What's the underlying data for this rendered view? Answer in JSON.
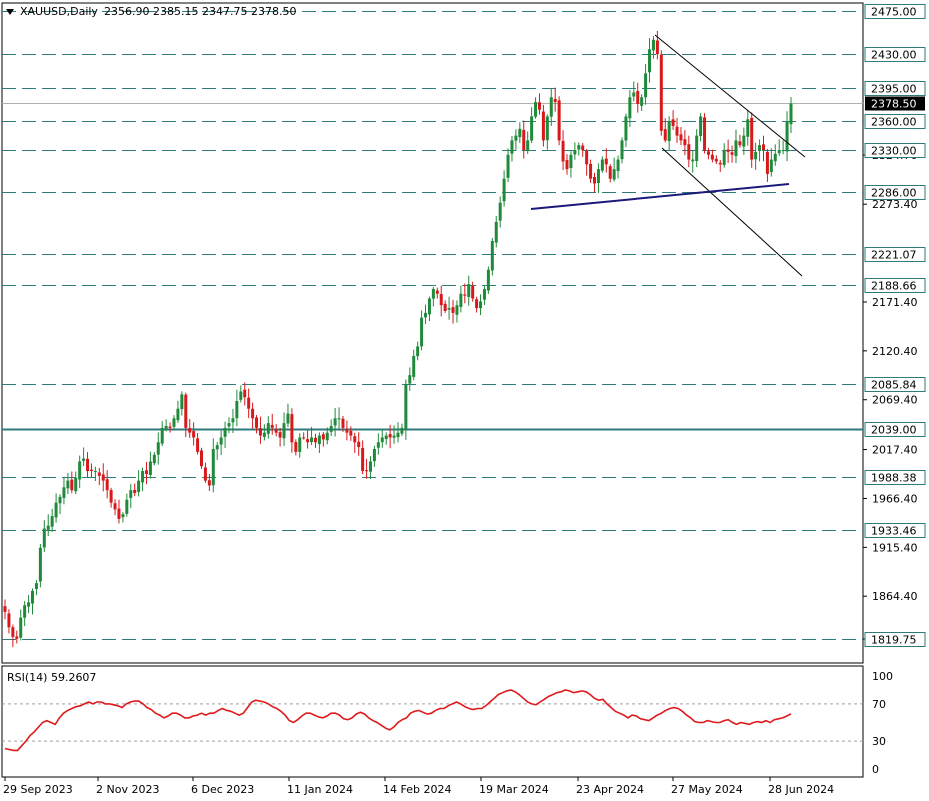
{
  "header": {
    "symbol": "XAUUSD,Daily",
    "ohlc": "2356.90 2385.15 2347.75 2378.50"
  },
  "colors": {
    "bull": "#1f8a3a",
    "bear": "#d7191c",
    "level_line": "#2f7a7a",
    "support_line": "#1a1a7a",
    "rsi_line": "#e0191c",
    "current_price_badge": "#000000"
  },
  "chart_data": [
    {
      "type": "candlestick",
      "title": "XAUUSD,Daily",
      "last_ohlc": {
        "open": 2356.9,
        "high": 2385.15,
        "low": 2347.75,
        "close": 2378.5
      },
      "ylim": [
        1805,
        2485
      ],
      "y_ticks": [
        "1864.40",
        "1915.40",
        "1966.40",
        "2017.40",
        "2069.40",
        "2120.40",
        "2171.40",
        "2273.40",
        "2324.70",
        "1819.75"
      ],
      "x_ticks": [
        "29 Sep 2023",
        "2 Nov 2023",
        "6 Dec 2023",
        "11 Jan 2024",
        "14 Feb 2024",
        "19 Mar 2024",
        "23 Apr 2024",
        "27 May 2024",
        "28 Jun 2024"
      ],
      "horizontal_levels": [
        {
          "label": "2475.00",
          "value": 2475.0,
          "style": "dashed"
        },
        {
          "label": "2430.00",
          "value": 2430.0,
          "style": "dashed"
        },
        {
          "label": "2395.00",
          "value": 2395.0,
          "style": "dashed"
        },
        {
          "label": "2360.00",
          "value": 2360.0,
          "style": "dashed"
        },
        {
          "label": "2330.00",
          "value": 2330.0,
          "style": "dashed"
        },
        {
          "label": "2286.00",
          "value": 2286.0,
          "style": "dashed"
        },
        {
          "label": "2221.07",
          "value": 2221.07,
          "style": "dashed"
        },
        {
          "label": "2188.66",
          "value": 2188.66,
          "style": "dashed"
        },
        {
          "label": "2085.84",
          "value": 2085.84,
          "style": "dashed"
        },
        {
          "label": "2039.00",
          "value": 2039.0,
          "style": "solid"
        },
        {
          "label": "1988.38",
          "value": 1988.38,
          "style": "dashed"
        },
        {
          "label": "1933.46",
          "value": 1933.46,
          "style": "dashed"
        },
        {
          "label": "1819.75",
          "value": 1819.75,
          "style": "dashed"
        }
      ],
      "current_price": {
        "label": "2378.50",
        "value": 2378.5
      },
      "closes": [
        1848,
        1832,
        1822,
        1820,
        1842,
        1855,
        1858,
        1870,
        1878,
        1915,
        1935,
        1938,
        1948,
        1962,
        1968,
        1978,
        1985,
        1975,
        1988,
        2005,
        2008,
        1995,
        1995,
        1995,
        1990,
        1985,
        1975,
        1962,
        1955,
        1945,
        1950,
        1965,
        1975,
        1972,
        1985,
        1995,
        1992,
        2005,
        2012,
        2025,
        2040,
        2042,
        2040,
        2050,
        2060,
        2075,
        2040,
        2035,
        2030,
        2015,
        2000,
        1985,
        1980,
        2018,
        2022,
        2030,
        2040,
        2045,
        2050,
        2068,
        2078,
        2072,
        2060,
        2050,
        2040,
        2032,
        2035,
        2045,
        2040,
        2035,
        2030,
        2045,
        2055,
        2025,
        2015,
        2030,
        2030,
        2025,
        2030,
        2025,
        2032,
        2028,
        2035,
        2042,
        2050,
        2050,
        2040,
        2035,
        2032,
        2025,
        2020,
        1995,
        1995,
        2005,
        2018,
        2025,
        2030,
        2032,
        2030,
        2032,
        2035,
        2040,
        2085,
        2095,
        2115,
        2125,
        2155,
        2160,
        2175,
        2185,
        2180,
        2168,
        2162,
        2165,
        2160,
        2168,
        2180,
        2178,
        2190,
        2175,
        2165,
        2172,
        2185,
        2205,
        2235,
        2255,
        2275,
        2300,
        2325,
        2340,
        2345,
        2352,
        2330,
        2340,
        2365,
        2380,
        2372,
        2340,
        2365,
        2385,
        2380,
        2340,
        2318,
        2310,
        2325,
        2330,
        2335,
        2330,
        2315,
        2300,
        2295,
        2310,
        2320,
        2315,
        2300,
        2310,
        2320,
        2340,
        2365,
        2385,
        2390,
        2378,
        2385,
        2410,
        2435,
        2445,
        2430,
        2350,
        2340,
        2360,
        2355,
        2345,
        2340,
        2335,
        2320,
        2320,
        2345,
        2365,
        2330,
        2325,
        2320,
        2318,
        2315,
        2330,
        2328,
        2325,
        2340,
        2335,
        2345,
        2362,
        2320,
        2328,
        2335,
        2330,
        2305,
        2320,
        2326,
        2330,
        2330,
        2360,
        2378.5
      ]
    },
    {
      "type": "line",
      "title": "RSI(14) 59.2607",
      "ylim": [
        0,
        100
      ],
      "y_ticks": [
        "100",
        "70",
        "30",
        "0"
      ],
      "levels": [
        70,
        30
      ],
      "values": [
        22,
        21,
        20,
        20,
        25,
        30,
        36,
        40,
        45,
        50,
        52,
        50,
        48,
        55,
        60,
        63,
        65,
        67,
        68,
        70,
        72,
        70,
        72,
        72,
        70,
        70,
        69,
        68,
        66,
        70,
        72,
        73,
        73,
        70,
        66,
        64,
        60,
        58,
        55,
        57,
        60,
        60,
        58,
        55,
        55,
        57,
        58,
        60,
        58,
        60,
        60,
        63,
        65,
        63,
        62,
        60,
        58,
        60,
        66,
        72,
        74,
        73,
        72,
        70,
        67,
        65,
        62,
        58,
        52,
        50,
        53,
        57,
        60,
        60,
        58,
        56,
        55,
        57,
        60,
        60,
        58,
        54,
        53,
        55,
        59,
        61,
        59,
        55,
        52,
        50,
        47,
        44,
        42,
        45,
        50,
        53,
        55,
        60,
        62,
        63,
        61,
        59,
        60,
        63,
        65,
        65,
        68,
        70,
        72,
        70,
        67,
        65,
        64,
        65,
        65,
        68,
        72,
        76,
        80,
        82,
        84,
        85,
        83,
        80,
        76,
        72,
        70,
        69,
        72,
        75,
        78,
        80,
        82,
        83,
        85,
        84,
        82,
        83,
        84,
        83,
        80,
        76,
        74,
        75,
        70,
        66,
        62,
        60,
        58,
        55,
        58,
        57,
        54,
        53,
        52,
        55,
        58,
        60,
        63,
        65,
        66,
        65,
        62,
        58,
        55,
        51,
        50,
        50,
        52,
        51,
        50,
        50,
        52,
        53,
        50,
        48,
        50,
        49,
        48,
        50,
        51,
        50,
        52,
        50,
        53,
        54,
        55,
        57,
        59.2607
      ]
    }
  ]
}
